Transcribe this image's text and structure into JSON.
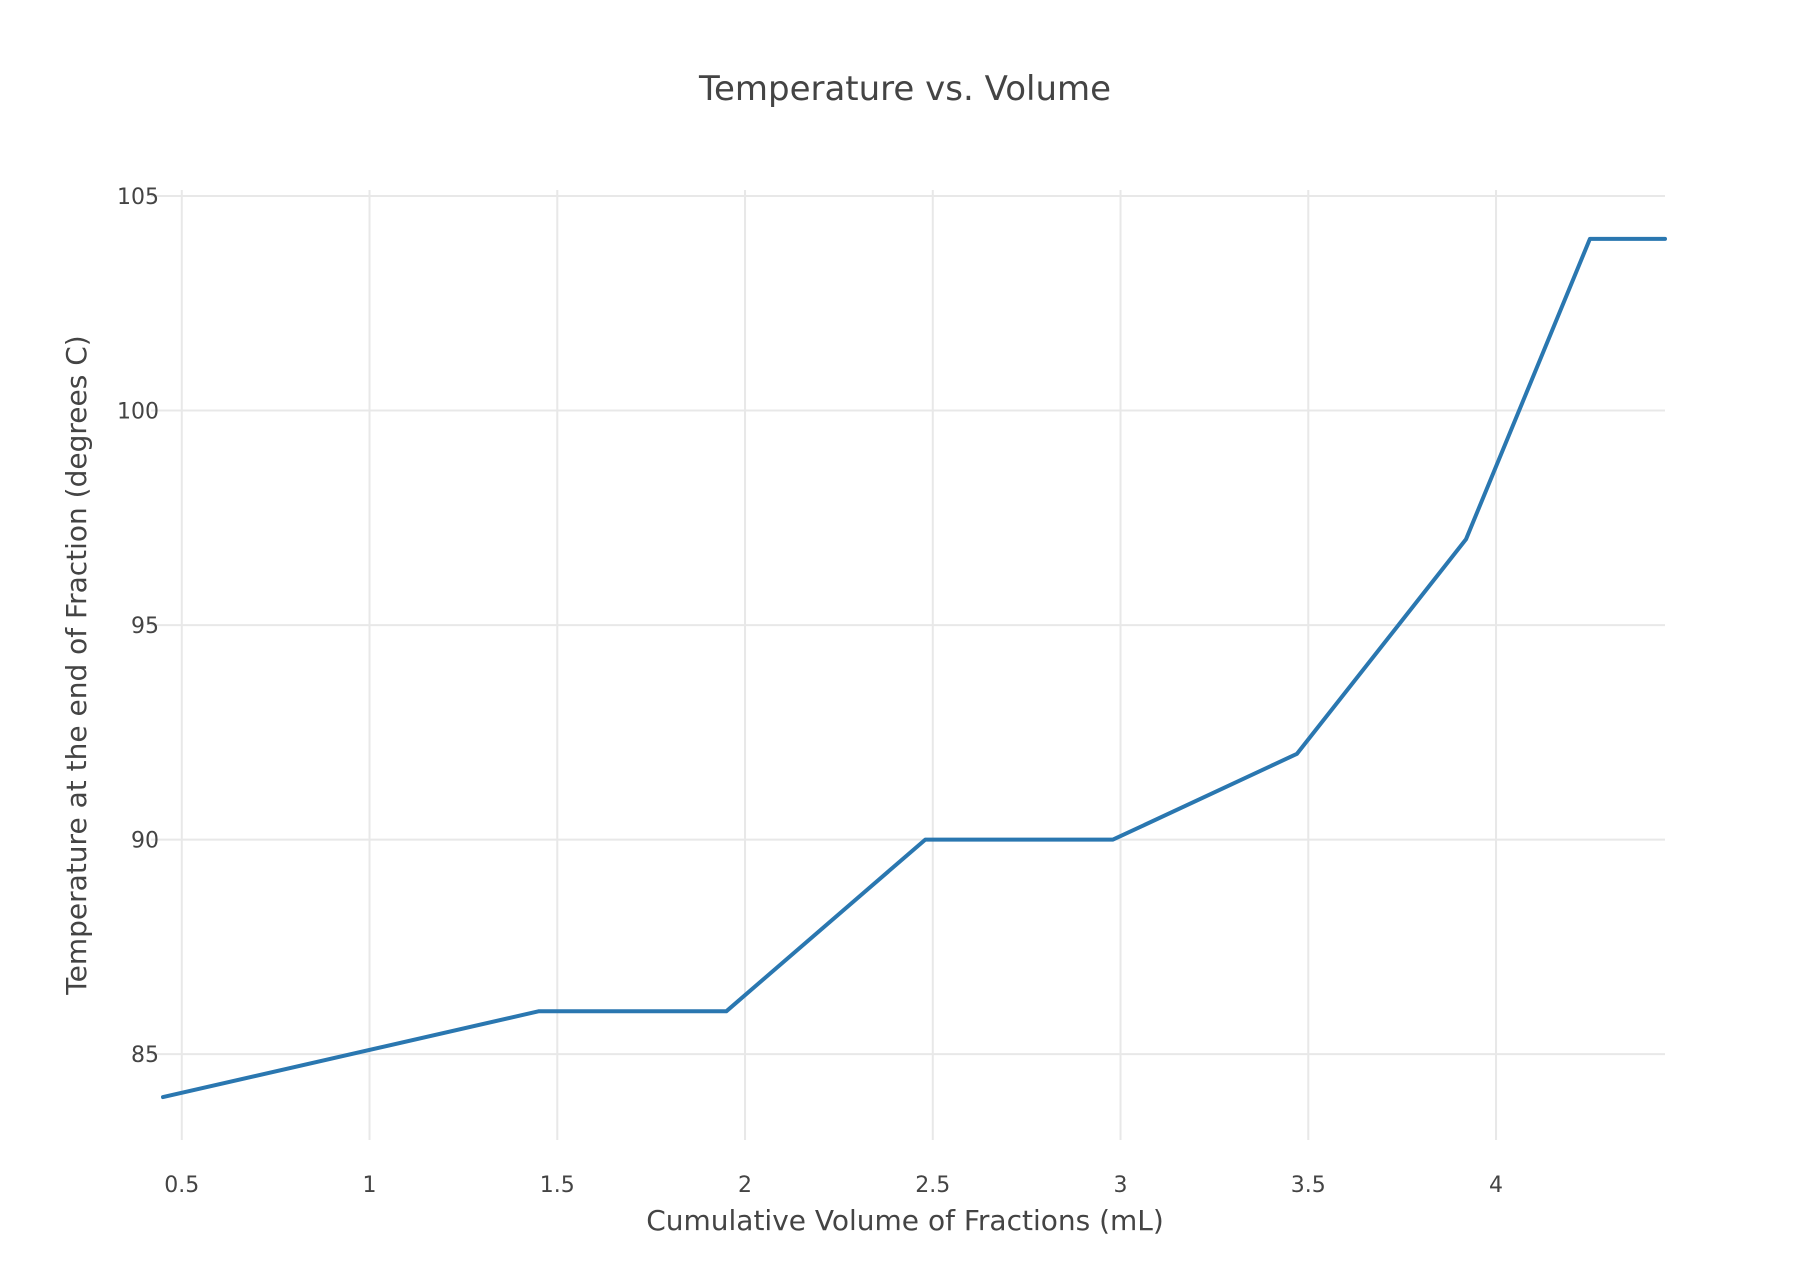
{
  "chart_data": {
    "type": "line",
    "title": "Temperature vs. Volume",
    "xlabel": "Cumulative Volume of Fractions (mL)",
    "ylabel": "Temperature at the end of Fraction (degrees C)",
    "xlim": [
      0.45,
      4.45
    ],
    "ylim": [
      83,
      105
    ],
    "grid": true,
    "line_color": "#2a77b0",
    "grid_color": "#e8e8e8",
    "x_ticks": [
      0.5,
      1,
      1.5,
      2,
      2.5,
      3,
      3.5,
      4
    ],
    "x_tick_labels": [
      "0.5",
      "1",
      "1.5",
      "2",
      "2.5",
      "3",
      "3.5",
      "4"
    ],
    "y_ticks": [
      85,
      90,
      95,
      100,
      105
    ],
    "y_tick_labels": [
      "85",
      "90",
      "95",
      "100",
      "105"
    ],
    "series": [
      {
        "x": [
          0.45,
          1.45,
          1.95,
          2.48,
          2.98,
          3.47,
          3.92,
          4.25,
          4.45
        ],
        "y": [
          84,
          86,
          86,
          90,
          90,
          92,
          97,
          104,
          104
        ]
      }
    ]
  }
}
